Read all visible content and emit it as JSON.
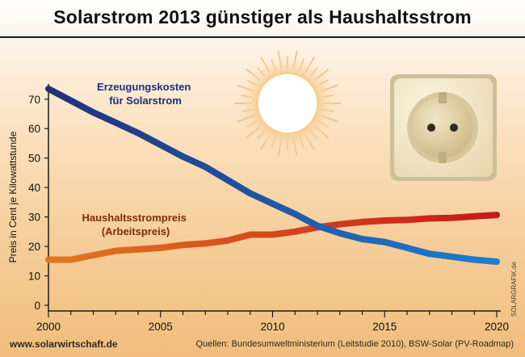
{
  "title": "Solarstrom 2013 günstiger als Haushaltsstrom",
  "footer": {
    "website": "www.solarwirtschaft.de",
    "sources": "Quellen: Bundesumweltministerium (Leitstudie 2010), BSW-Solar (PV-Roadmap)",
    "credit": "SOLARGRAFIK.de"
  },
  "colors": {
    "solar_line_start": "#22307a",
    "solar_line_end": "#1e7fd0",
    "household_line_start": "#e07820",
    "household_line_end": "#c81818"
  },
  "chart_data": {
    "type": "line",
    "title": "Solarstrom 2013 günstiger als Haushaltsstrom",
    "xlabel": "",
    "ylabel": "Preis in Cent je Kilowattstunde",
    "xlim": [
      2000,
      2020
    ],
    "ylim": [
      0,
      75
    ],
    "x_ticks": [
      2000,
      2005,
      2010,
      2015,
      2020
    ],
    "y_ticks": [
      0,
      10,
      20,
      30,
      40,
      50,
      60,
      70
    ],
    "grid": false,
    "x": [
      2000,
      2001,
      2002,
      2003,
      2004,
      2005,
      2006,
      2007,
      2008,
      2009,
      2010,
      2011,
      2012,
      2013,
      2014,
      2015,
      2016,
      2017,
      2018,
      2019,
      2020
    ],
    "series": [
      {
        "name": "Erzeugungskosten für Solarstrom",
        "label_lines": [
          "Erzeugungskosten",
          "für Solarstrom"
        ],
        "values": [
          73.5,
          69.5,
          65.5,
          62,
          58.5,
          54.5,
          50.5,
          47,
          42.5,
          38,
          34.5,
          31,
          27,
          24.5,
          22.5,
          21.5,
          19.5,
          17.5,
          16.5,
          15.5,
          14.8
        ]
      },
      {
        "name": "Haushaltsstrompreis (Arbeitspreis)",
        "label_lines": [
          "Haushaltsstrompreis",
          "(Arbeitspreis)"
        ],
        "values": [
          15.5,
          15.5,
          17,
          18.5,
          19,
          19.5,
          20.5,
          21,
          22,
          24,
          24,
          25,
          26.5,
          27.5,
          28.3,
          28.8,
          29,
          29.5,
          29.7,
          30.2,
          30.7
        ]
      }
    ]
  }
}
